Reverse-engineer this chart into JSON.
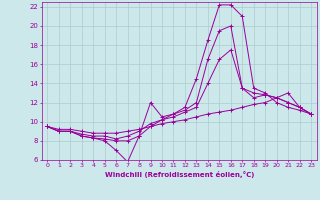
{
  "xlabel": "Windchill (Refroidissement éolien,°C)",
  "xlim": [
    -0.5,
    23.5
  ],
  "ylim": [
    6,
    22.5
  ],
  "xticks": [
    0,
    1,
    2,
    3,
    4,
    5,
    6,
    7,
    8,
    9,
    10,
    11,
    12,
    13,
    14,
    15,
    16,
    17,
    18,
    19,
    20,
    21,
    22,
    23
  ],
  "yticks": [
    6,
    8,
    10,
    12,
    14,
    16,
    18,
    20,
    22
  ],
  "bg_color": "#cce8ea",
  "line_color": "#990099",
  "grid_color": "#aacccc",
  "series": [
    [
      9.5,
      9.0,
      9.0,
      8.5,
      8.3,
      8.0,
      7.0,
      5.8,
      8.5,
      12.0,
      10.5,
      10.8,
      11.5,
      14.5,
      18.5,
      22.2,
      22.2,
      21.0,
      13.5,
      13.0,
      12.0,
      11.5,
      11.2,
      10.8
    ],
    [
      9.5,
      9.0,
      9.0,
      8.5,
      8.3,
      8.2,
      8.0,
      8.0,
      8.5,
      9.5,
      10.2,
      10.8,
      11.2,
      12.0,
      16.5,
      19.5,
      20.0,
      13.5,
      13.0,
      12.8,
      12.5,
      12.0,
      11.5,
      10.8
    ],
    [
      9.5,
      9.0,
      9.0,
      8.7,
      8.5,
      8.5,
      8.2,
      8.5,
      9.0,
      9.8,
      10.2,
      10.5,
      11.0,
      11.5,
      14.0,
      16.5,
      17.5,
      13.5,
      12.5,
      12.8,
      12.5,
      12.0,
      11.5,
      10.8
    ],
    [
      9.5,
      9.2,
      9.2,
      9.0,
      8.8,
      8.8,
      8.8,
      9.0,
      9.2,
      9.5,
      9.8,
      10.0,
      10.2,
      10.5,
      10.8,
      11.0,
      11.2,
      11.5,
      11.8,
      12.0,
      12.5,
      13.0,
      11.5,
      10.8
    ]
  ]
}
